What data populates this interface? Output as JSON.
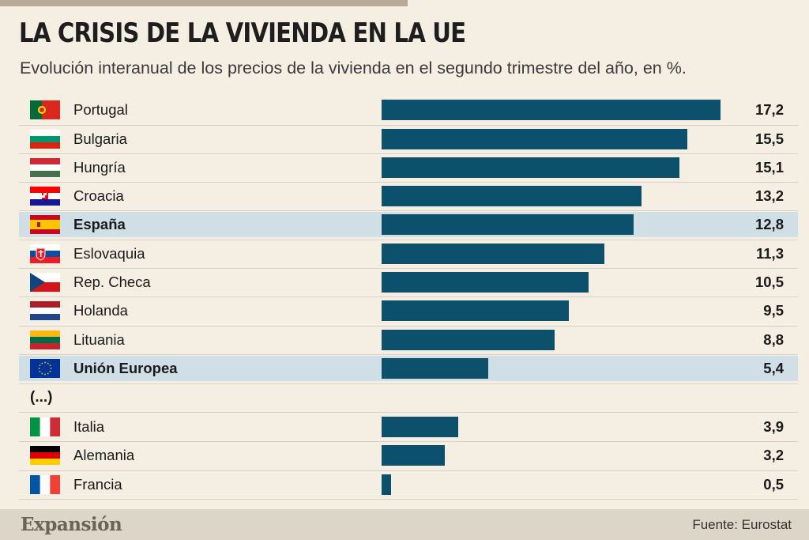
{
  "title": "LA CRISIS DE LA VIVIENDA EN LA UE",
  "subtitle": "Evolución interanual de los precios de la vivienda en el segundo trimestre del año, en %.",
  "ellipsis": "(...)",
  "brand": "Expansión",
  "source": "Fuente: Eurostat",
  "colors": {
    "bar": "#0c506b",
    "highlight": "#d0dfe6",
    "background": "#f5efe3"
  },
  "chart_data": {
    "type": "bar",
    "orientation": "horizontal",
    "title": "LA CRISIS DE LA VIVIENDA EN LA UE",
    "subtitle": "Evolución interanual de los precios de la vivienda en el segundo trimestre del año, en %.",
    "xlim": [
      0,
      17.2
    ],
    "rows": [
      {
        "country": "Portugal",
        "value": 17.2,
        "label": "17,2",
        "flag": "portugal-flag"
      },
      {
        "country": "Bulgaria",
        "value": 15.5,
        "label": "15,5",
        "flag": "bulgaria-flag"
      },
      {
        "country": "Hungría",
        "value": 15.1,
        "label": "15,1",
        "flag": "hungary-flag"
      },
      {
        "country": "Croacia",
        "value": 13.2,
        "label": "13,2",
        "flag": "croatia-flag"
      },
      {
        "country": "España",
        "value": 12.8,
        "label": "12,8",
        "flag": "spain-flag",
        "highlight": true
      },
      {
        "country": "Eslovaquia",
        "value": 11.3,
        "label": "11,3",
        "flag": "slovakia-flag"
      },
      {
        "country": "Rep. Checa",
        "value": 10.5,
        "label": "10,5",
        "flag": "czech-flag"
      },
      {
        "country": "Holanda",
        "value": 9.5,
        "label": "9,5",
        "flag": "netherlands-flag"
      },
      {
        "country": "Lituania",
        "value": 8.8,
        "label": "8,8",
        "flag": "lithuania-flag"
      },
      {
        "country": "Unión Europea",
        "value": 5.4,
        "label": "5,4",
        "flag": "eu-flag",
        "highlight": true
      },
      {
        "country": "Italia",
        "value": 3.9,
        "label": "3,9",
        "flag": "italy-flag"
      },
      {
        "country": "Alemania",
        "value": 3.2,
        "label": "3,2",
        "flag": "germany-flag"
      },
      {
        "country": "Francia",
        "value": 0.5,
        "label": "0,5",
        "flag": "france-flag"
      }
    ]
  }
}
